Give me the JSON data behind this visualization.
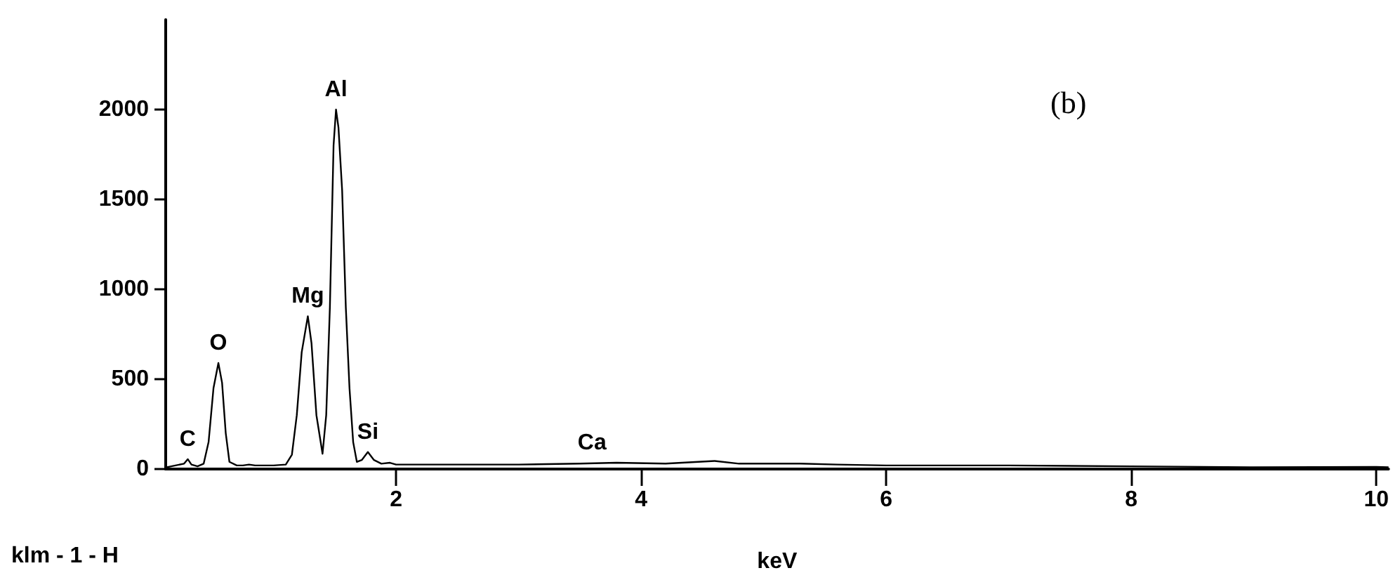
{
  "chart_data": {
    "type": "line",
    "xlabel": "keV",
    "xlim": [
      0.12,
      10.1
    ],
    "xticks": [
      2,
      4,
      6,
      8,
      10
    ],
    "ylim": [
      0,
      2500
    ],
    "yticks": [
      0,
      500,
      1000,
      1500,
      2000
    ],
    "grid": false,
    "marker": "none",
    "line_style": "solid",
    "series": [
      {
        "color": "#000000",
        "x": [
          0.13,
          0.2,
          0.27,
          0.3,
          0.33,
          0.38,
          0.43,
          0.47,
          0.51,
          0.55,
          0.58,
          0.61,
          0.64,
          0.7,
          0.75,
          0.8,
          0.85,
          1.0,
          1.1,
          1.15,
          1.19,
          1.23,
          1.28,
          1.31,
          1.35,
          1.4,
          1.43,
          1.46,
          1.49,
          1.51,
          1.53,
          1.56,
          1.59,
          1.62,
          1.65,
          1.68,
          1.72,
          1.77,
          1.82,
          1.88,
          1.95,
          2.0,
          2.5,
          3.0,
          3.5,
          3.8,
          4.2,
          4.6,
          4.8,
          5.3,
          5.6,
          6.0,
          7.0,
          8.0,
          9.0,
          10.0,
          10.1
        ],
        "values": [
          10,
          20,
          30,
          55,
          25,
          15,
          30,
          150,
          450,
          590,
          480,
          200,
          40,
          20,
          20,
          25,
          20,
          20,
          25,
          80,
          300,
          650,
          850,
          700,
          300,
          85,
          300,
          900,
          1800,
          2000,
          1900,
          1550,
          900,
          450,
          150,
          40,
          50,
          95,
          50,
          30,
          35,
          25,
          25,
          25,
          30,
          35,
          30,
          45,
          30,
          30,
          25,
          20,
          20,
          15,
          10,
          12,
          10
        ]
      }
    ],
    "annotations": [
      {
        "text": "C",
        "x": 0.3,
        "y": 55
      },
      {
        "text": "O",
        "x": 0.55,
        "y": 590
      },
      {
        "text": "Mg",
        "x": 1.28,
        "y": 850
      },
      {
        "text": "Al",
        "x": 1.51,
        "y": 2000
      },
      {
        "text": "Si",
        "x": 1.77,
        "y": 95
      },
      {
        "text": "Ca",
        "x": 3.6,
        "y": 35
      },
      "(b)",
      "klm - 1 - H"
    ]
  }
}
